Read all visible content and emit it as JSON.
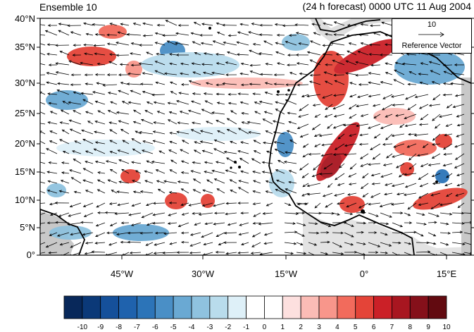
{
  "title_left": "Ensemble 10",
  "title_right": "(24 h forecast) 0000 UTC 11 Aug 2004",
  "reference": {
    "value": "10",
    "label": "Reference Vector"
  },
  "lat_labels": [
    "40°N",
    "35°N",
    "30°N",
    "25°N",
    "20°N",
    "15°N",
    "10°N",
    "5°N",
    "0°"
  ],
  "lon_labels": [
    "45°W",
    "30°W",
    "15°W",
    "0°",
    "15°E"
  ],
  "colorbar": {
    "labels": [
      "-10",
      "-9",
      "-8",
      "-7",
      "-6",
      "-5",
      "-4",
      "-3",
      "-2",
      "-1",
      "0",
      "1",
      "2",
      "3",
      "4",
      "5",
      "6",
      "7",
      "8",
      "9",
      "10"
    ],
    "colors": [
      "#08285a",
      "#0b3978",
      "#15509a",
      "#1f62ad",
      "#2c74b8",
      "#4a8fc6",
      "#6aa9d3",
      "#8fc2df",
      "#b9dcec",
      "#def0f8",
      "#ffffff",
      "#ffffff",
      "#fde0df",
      "#fbbcb6",
      "#f8968b",
      "#f26b5c",
      "#e44438",
      "#cb2027",
      "#a81620",
      "#85101a",
      "#620a10"
    ]
  },
  "colors": {
    "land": "#c8c8c8",
    "coast": "#000000",
    "vector": "#000000"
  }
}
